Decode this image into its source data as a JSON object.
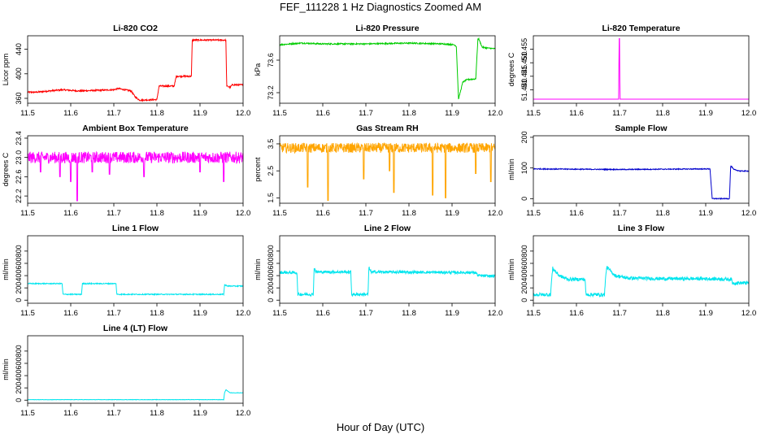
{
  "page": {
    "title": "FEF_111228  1 Hz Diagnostics Zoomed AM",
    "xlabel": "Hour of Day (UTC)"
  },
  "chart_data": [
    {
      "type": "line",
      "title": "Li-820 CO2",
      "ylabel": "Licor ppm",
      "color": "#ff0000",
      "xlim": [
        11.5,
        12.0
      ],
      "ylim": [
        352,
        462
      ],
      "x_ticks": [
        "11.5",
        "11.6",
        "11.7",
        "11.8",
        "11.9",
        "12.0"
      ],
      "x_tick_values": [
        11.5,
        11.6,
        11.7,
        11.8,
        11.9,
        12.0
      ],
      "y_ticks": [
        "360",
        "400",
        "440"
      ],
      "y_tick_values": [
        360,
        400,
        440
      ],
      "noise": 1.2,
      "series": [
        {
          "x": [
            11.5,
            11.52,
            11.55,
            11.58,
            11.62,
            11.7,
            11.71,
            11.74,
            11.75,
            11.76,
            11.8,
            11.805,
            11.84,
            11.845,
            11.88,
            11.882,
            11.96,
            11.962,
            11.97,
            11.975,
            12.0
          ],
          "y": [
            370,
            370,
            372,
            374,
            372,
            374,
            376,
            372,
            362,
            357,
            358,
            380,
            380,
            396,
            396,
            455,
            455,
            380,
            378,
            382,
            382
          ]
        }
      ]
    },
    {
      "type": "line",
      "title": "Li-820 Pressure",
      "ylabel": "kPa",
      "color": "#00cc00",
      "xlim": [
        11.5,
        12.0
      ],
      "ylim": [
        73.07,
        73.9
      ],
      "x_ticks": [
        "11.5",
        "11.6",
        "11.7",
        "11.8",
        "11.9",
        "12.0"
      ],
      "x_tick_values": [
        11.5,
        11.6,
        11.7,
        11.8,
        11.9,
        12.0
      ],
      "y_ticks": [
        "73.2",
        "73.6"
      ],
      "y_tick_values": [
        73.2,
        73.6
      ],
      "noise": 0.008,
      "series": [
        {
          "x": [
            11.5,
            11.55,
            11.6,
            11.7,
            11.8,
            11.88,
            11.905,
            11.91,
            11.915,
            11.925,
            11.935,
            11.955,
            11.96,
            11.962,
            11.97,
            11.98,
            12.0
          ],
          "y": [
            73.79,
            73.81,
            73.8,
            73.8,
            73.81,
            73.8,
            73.79,
            73.77,
            73.12,
            73.33,
            73.36,
            73.37,
            73.86,
            73.86,
            73.76,
            73.75,
            73.74
          ]
        }
      ]
    },
    {
      "type": "line",
      "title": "Li-820 Temperature",
      "ylabel": "degrees C",
      "color": "#ff00ff",
      "xlim": [
        11.5,
        12.0
      ],
      "ylim": [
        51.435,
        51.46
      ],
      "x_ticks": [
        "11.5",
        "11.6",
        "11.7",
        "11.8",
        "11.9",
        "12.0"
      ],
      "x_tick_values": [
        11.5,
        11.6,
        11.7,
        11.8,
        11.9,
        12.0
      ],
      "y_ticks": [
        "51.440",
        "51.445",
        "51.450",
        "51.455"
      ],
      "y_tick_values": [
        51.44,
        51.445,
        51.45,
        51.455
      ],
      "noise": 0,
      "series": [
        {
          "x": [
            11.5,
            11.698,
            11.699,
            11.7,
            11.701,
            12.0
          ],
          "y": [
            51.4365,
            51.4365,
            51.459,
            51.459,
            51.4365,
            51.4365
          ]
        }
      ]
    },
    {
      "type": "line",
      "title": "Ambient Box Temperature",
      "ylabel": "degrees C",
      "color": "#ff00ff",
      "xlim": [
        11.5,
        12.0
      ],
      "ylim": [
        22.05,
        23.45
      ],
      "x_ticks": [
        "11.5",
        "11.6",
        "11.7",
        "11.8",
        "11.9",
        "12.0"
      ],
      "x_tick_values": [
        11.5,
        11.6,
        11.7,
        11.8,
        11.9,
        12.0
      ],
      "y_ticks": [
        "22.2",
        "22.6",
        "23.0",
        "23.4"
      ],
      "y_tick_values": [
        22.2,
        22.6,
        23.0,
        23.4
      ],
      "noise": 0.12,
      "dips": [
        [
          11.53,
          22.7
        ],
        [
          11.575,
          22.6
        ],
        [
          11.6,
          22.5
        ],
        [
          11.615,
          22.1
        ],
        [
          11.65,
          22.7
        ],
        [
          11.69,
          22.65
        ],
        [
          11.77,
          22.6
        ],
        [
          11.9,
          22.7
        ],
        [
          11.955,
          22.5
        ]
      ],
      "series": [
        {
          "x": [
            11.5,
            12.0
          ],
          "y": [
            23.0,
            23.0
          ]
        }
      ]
    },
    {
      "type": "line",
      "title": "Gas Stream RH",
      "ylabel": "percent",
      "color": "#ffa500",
      "xlim": [
        11.5,
        12.0
      ],
      "ylim": [
        1.3,
        3.8
      ],
      "x_ticks": [
        "11.5",
        "11.6",
        "11.7",
        "11.8",
        "11.9",
        "12.0"
      ],
      "x_tick_values": [
        11.5,
        11.6,
        11.7,
        11.8,
        11.9,
        12.0
      ],
      "y_ticks": [
        "1.5",
        "2.5",
        "3.5"
      ],
      "y_tick_values": [
        1.5,
        2.5,
        3.5
      ],
      "noise": 0.18,
      "dips": [
        [
          11.565,
          1.9
        ],
        [
          11.612,
          1.4
        ],
        [
          11.695,
          2.2
        ],
        [
          11.755,
          2.5
        ],
        [
          11.765,
          1.7
        ],
        [
          11.855,
          1.6
        ],
        [
          11.885,
          1.5
        ],
        [
          11.955,
          2.4
        ],
        [
          11.99,
          2.1
        ]
      ],
      "series": [
        {
          "x": [
            11.5,
            12.0
          ],
          "y": [
            3.35,
            3.35
          ]
        }
      ]
    },
    {
      "type": "line",
      "title": "Sample Flow",
      "ylabel": "ml/min",
      "color": "#0000cc",
      "xlim": [
        11.5,
        12.0
      ],
      "ylim": [
        -15,
        205
      ],
      "x_ticks": [
        "11.5",
        "11.6",
        "11.7",
        "11.8",
        "11.9",
        "12.0"
      ],
      "x_tick_values": [
        11.5,
        11.6,
        11.7,
        11.8,
        11.9,
        12.0
      ],
      "y_ticks": [
        "0",
        "100",
        "200"
      ],
      "y_tick_values": [
        0,
        100,
        200
      ],
      "noise": 1.5,
      "series": [
        {
          "x": [
            11.5,
            11.6,
            11.7,
            11.8,
            11.91,
            11.915,
            11.955,
            11.958,
            11.965,
            11.98,
            12.0
          ],
          "y": [
            97,
            96,
            95,
            96,
            97,
            0,
            0,
            108,
            95,
            90,
            90
          ]
        }
      ]
    },
    {
      "type": "line",
      "title": "Line 1 Flow",
      "ylabel": "ml/min",
      "color": "#00e5ee",
      "xlim": [
        11.5,
        12.0
      ],
      "ylim": [
        -50,
        1050
      ],
      "x_ticks": [
        "11.5",
        "11.6",
        "11.7",
        "11.8",
        "11.9",
        "12.0"
      ],
      "x_tick_values": [
        11.5,
        11.6,
        11.7,
        11.8,
        11.9,
        12.0
      ],
      "y_ticks": [
        "0",
        "200",
        "400",
        "600",
        "800"
      ],
      "y_tick_values": [
        0,
        200,
        400,
        600,
        800
      ],
      "noise": 8,
      "series": [
        {
          "x": [
            11.5,
            11.58,
            11.582,
            11.625,
            11.627,
            11.705,
            11.707,
            11.955,
            11.957,
            11.965,
            12.0
          ],
          "y": [
            270,
            270,
            95,
            95,
            270,
            270,
            95,
            95,
            250,
            230,
            230
          ]
        }
      ]
    },
    {
      "type": "line",
      "title": "Line 2 Flow",
      "ylabel": "ml/min",
      "color": "#00e5ee",
      "xlim": [
        11.5,
        12.0
      ],
      "ylim": [
        -50,
        1050
      ],
      "x_ticks": [
        "11.5",
        "11.6",
        "11.7",
        "11.8",
        "11.9",
        "12.0"
      ],
      "x_tick_values": [
        11.5,
        11.6,
        11.7,
        11.8,
        11.9,
        12.0
      ],
      "y_ticks": [
        "0",
        "200",
        "400",
        "600",
        "800"
      ],
      "y_tick_values": [
        0,
        200,
        400,
        600,
        800
      ],
      "noise": 22,
      "series": [
        {
          "x": [
            11.5,
            11.54,
            11.542,
            11.578,
            11.58,
            11.585,
            11.665,
            11.667,
            11.705,
            11.707,
            11.712,
            11.955,
            11.96,
            12.0
          ],
          "y": [
            450,
            450,
            95,
            95,
            520,
            460,
            460,
            95,
            95,
            530,
            460,
            450,
            400,
            390
          ]
        }
      ]
    },
    {
      "type": "line",
      "title": "Line 3 Flow",
      "ylabel": "ml/min",
      "color": "#00e5ee",
      "xlim": [
        11.5,
        12.0
      ],
      "ylim": [
        -50,
        1050
      ],
      "x_ticks": [
        "11.5",
        "11.6",
        "11.7",
        "11.8",
        "11.9",
        "12.0"
      ],
      "x_tick_values": [
        11.5,
        11.6,
        11.7,
        11.8,
        11.9,
        12.0
      ],
      "y_ticks": [
        "0",
        "200",
        "400",
        "600",
        "800"
      ],
      "y_tick_values": [
        0,
        200,
        400,
        600,
        800
      ],
      "noise": 28,
      "series": [
        {
          "x": [
            11.5,
            11.54,
            11.542,
            11.545,
            11.56,
            11.58,
            11.62,
            11.622,
            11.665,
            11.667,
            11.67,
            11.69,
            11.72,
            11.8,
            11.9,
            11.96,
            11.962,
            12.0
          ],
          "y": [
            90,
            90,
            300,
            520,
            400,
            340,
            340,
            90,
            90,
            300,
            540,
            400,
            360,
            350,
            350,
            340,
            280,
            280
          ]
        }
      ]
    },
    {
      "type": "line",
      "title": "Line 4 (LT) Flow",
      "ylabel": "ml/min",
      "color": "#00e5ee",
      "xlim": [
        11.5,
        12.0
      ],
      "ylim": [
        -50,
        1050
      ],
      "x_ticks": [
        "11.5",
        "11.6",
        "11.7",
        "11.8",
        "11.9",
        "12.0"
      ],
      "x_tick_values": [
        11.5,
        11.6,
        11.7,
        11.8,
        11.9,
        12.0
      ],
      "y_ticks": [
        "0",
        "200",
        "400",
        "600",
        "800"
      ],
      "y_tick_values": [
        0,
        200,
        400,
        600,
        800
      ],
      "noise": 3,
      "series": [
        {
          "x": [
            11.5,
            11.955,
            11.957,
            11.96,
            11.97,
            12.0
          ],
          "y": [
            8,
            8,
            120,
            170,
            120,
            120
          ]
        }
      ]
    }
  ]
}
